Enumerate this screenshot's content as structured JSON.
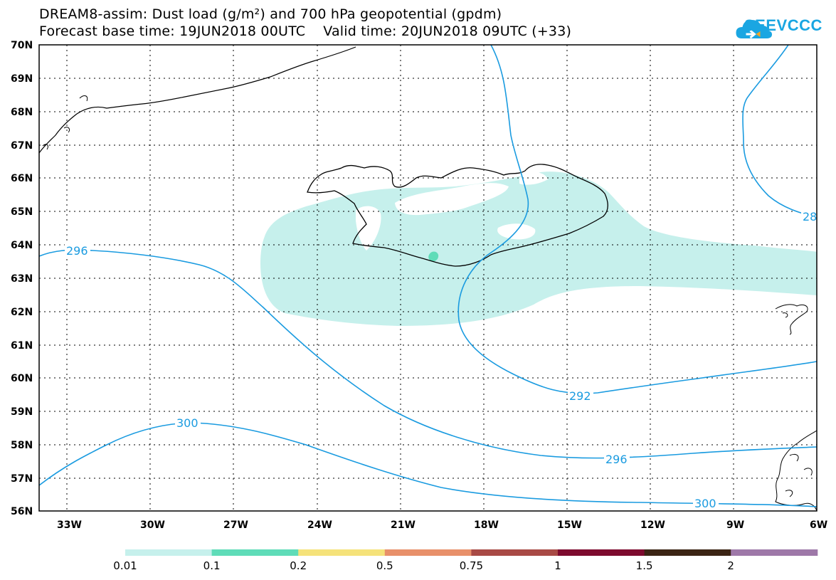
{
  "title": {
    "line1": "DREAM8-assim: Dust load (g/m²) and 700 hPa geopotential (gpdm)",
    "line2": "Forecast base time: 19JUN2018 00UTC    Valid time: 20JUN2018 09UTC (+33)"
  },
  "logo": {
    "text": "SEEVCCC",
    "icon": "cloud-logo-icon"
  },
  "map": {
    "lat_labels": [
      "70N",
      "69N",
      "68N",
      "67N",
      "66N",
      "65N",
      "64N",
      "63N",
      "62N",
      "61N",
      "60N",
      "59N",
      "58N",
      "57N",
      "56N"
    ],
    "lon_labels": [
      "33W",
      "30W",
      "27W",
      "24W",
      "21W",
      "18W",
      "15W",
      "12W",
      "9W",
      "6W"
    ],
    "lat_range": [
      56,
      70
    ],
    "lon_range": [
      -34.2,
      -6
    ],
    "grid": "dotted",
    "contour_labels": [
      "296",
      "300",
      "292",
      "296",
      "300",
      "28"
    ],
    "colors": {
      "contour": "#1a9be0",
      "dust_light": "#c6f0ec",
      "dust_medium": "#5fdcb8",
      "coast": "#000000"
    }
  },
  "colorbar": {
    "labels": [
      "0.01",
      "0.1",
      "0.2",
      "0.5",
      "0.75",
      "1",
      "1.5",
      "2"
    ],
    "colors": [
      "#c6f0ec",
      "#5fdcb8",
      "#f5e27a",
      "#e8906a",
      "#a84a45",
      "#7d0a2e",
      "#3b2414",
      "#9e78a8"
    ]
  }
}
